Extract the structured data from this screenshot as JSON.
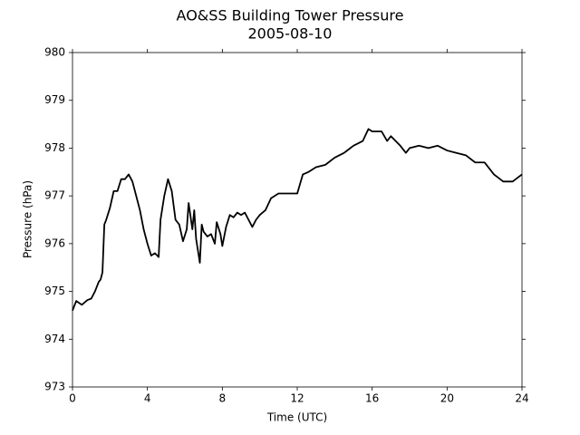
{
  "chart_data": {
    "type": "line",
    "title": "AO&SS Building Tower Pressure",
    "subtitle": "2005-08-10",
    "x_label": "Time (UTC)",
    "y_label": "Pressure (hPa)",
    "color": "#000000",
    "x": [
      0,
      0.2,
      0.5,
      0.8,
      1.0,
      1.2,
      1.4,
      1.5,
      1.6,
      1.7,
      1.8,
      2.0,
      2.2,
      2.4,
      2.6,
      2.8,
      3.0,
      3.2,
      3.4,
      3.6,
      3.8,
      4.0,
      4.2,
      4.4,
      4.6,
      4.7,
      4.9,
      5.1,
      5.3,
      5.5,
      5.7,
      5.9,
      6.1,
      6.2,
      6.4,
      6.5,
      6.6,
      6.8,
      6.9,
      7.0,
      7.2,
      7.4,
      7.6,
      7.7,
      7.9,
      8.0,
      8.2,
      8.4,
      8.6,
      8.8,
      9.0,
      9.2,
      9.4,
      9.6,
      9.8,
      10.0,
      10.3,
      10.6,
      11.0,
      11.5,
      12.0,
      12.3,
      12.6,
      13.0,
      13.5,
      14.0,
      14.5,
      15.0,
      15.5,
      15.8,
      16.0,
      16.5,
      16.8,
      17.0,
      17.5,
      17.8,
      18.0,
      18.5,
      19.0,
      19.5,
      20.0,
      20.5,
      21.0,
      21.5,
      22.0,
      22.5,
      23.0,
      23.5,
      24.0
    ],
    "values": [
      974.6,
      974.8,
      974.72,
      974.82,
      974.85,
      975.0,
      975.2,
      975.25,
      975.4,
      976.4,
      976.5,
      976.75,
      977.1,
      977.1,
      977.35,
      977.35,
      977.45,
      977.3,
      977.0,
      976.7,
      976.3,
      976.0,
      975.75,
      975.8,
      975.72,
      976.5,
      977.0,
      977.35,
      977.1,
      976.5,
      976.4,
      976.05,
      976.3,
      976.85,
      976.3,
      976.7,
      976.1,
      975.6,
      976.4,
      976.25,
      976.15,
      976.2,
      976.0,
      976.45,
      976.2,
      975.95,
      976.35,
      976.6,
      976.55,
      976.65,
      976.6,
      976.65,
      976.5,
      976.35,
      976.5,
      976.6,
      976.7,
      976.95,
      977.05,
      977.05,
      977.05,
      977.45,
      977.5,
      977.6,
      977.65,
      977.8,
      977.9,
      978.05,
      978.15,
      978.4,
      978.35,
      978.35,
      978.15,
      978.25,
      978.05,
      977.9,
      978.0,
      978.05,
      978.0,
      978.05,
      977.95,
      977.9,
      977.85,
      977.7,
      977.7,
      977.45,
      977.3,
      977.3,
      977.45
    ],
    "xlim": [
      0,
      24
    ],
    "xticks": [
      0,
      4,
      8,
      12,
      16,
      20,
      24
    ],
    "ylim": [
      973,
      980
    ],
    "yticks": [
      973,
      974,
      975,
      976,
      977,
      978,
      979,
      980
    ],
    "grid": false
  }
}
